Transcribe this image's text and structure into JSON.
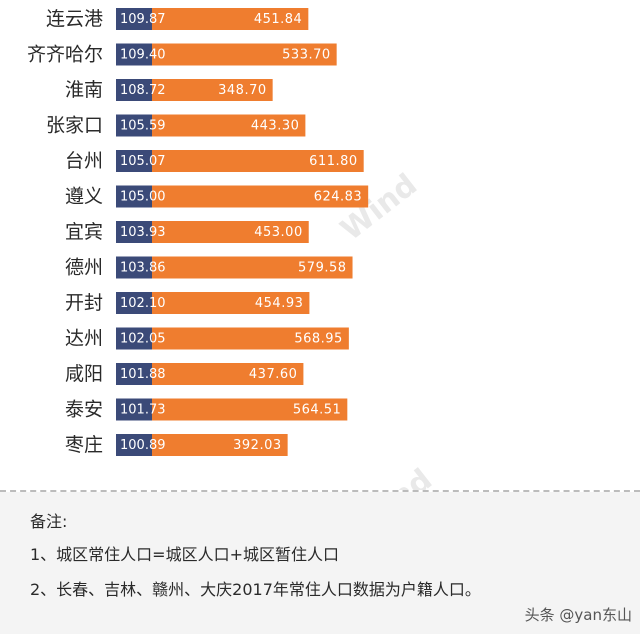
{
  "chart_data": {
    "type": "bar",
    "orientation": "horizontal",
    "categories": [
      "连云港",
      "齐齐哈尔",
      "淮南",
      "张家口",
      "台州",
      "遵义",
      "宜宾",
      "德州",
      "开封",
      "达州",
      "咸阳",
      "泰安",
      "枣庄"
    ],
    "series": [
      {
        "values": [
          109.87,
          109.4,
          108.72,
          105.59,
          105.07,
          105.0,
          103.93,
          103.86,
          102.1,
          102.05,
          101.88,
          101.73,
          100.89
        ],
        "labels": [
          "109.87",
          "109.40",
          "108.72",
          "105.59",
          "105.07",
          "105.00",
          "103.93",
          "103.86",
          "102.10",
          "102.05",
          "101.88",
          "101.73",
          "100.89"
        ],
        "color": "#3b4a78"
      },
      {
        "values": [
          451.84,
          533.7,
          348.7,
          443.3,
          611.8,
          624.83,
          453.0,
          579.58,
          454.93,
          568.95,
          437.6,
          564.51,
          392.03
        ],
        "labels": [
          "451.84",
          "533.70",
          "348.70",
          "443.30",
          "611.80",
          "624.83",
          "453.00",
          "579.58",
          "454.93",
          "568.95",
          "437.60",
          "564.51",
          "392.03"
        ],
        "color": "#ef7d2f"
      }
    ],
    "grid": false,
    "legend": "none"
  },
  "watermark": "Wind",
  "notes": {
    "title": "备注:",
    "line1": "1、城区常住人口=城区人口+城区暂住人口",
    "line2": "2、长春、吉林、赣州、大庆2017年常住人口数据为户籍人口。"
  },
  "source_tag": "头条 @yan东山"
}
